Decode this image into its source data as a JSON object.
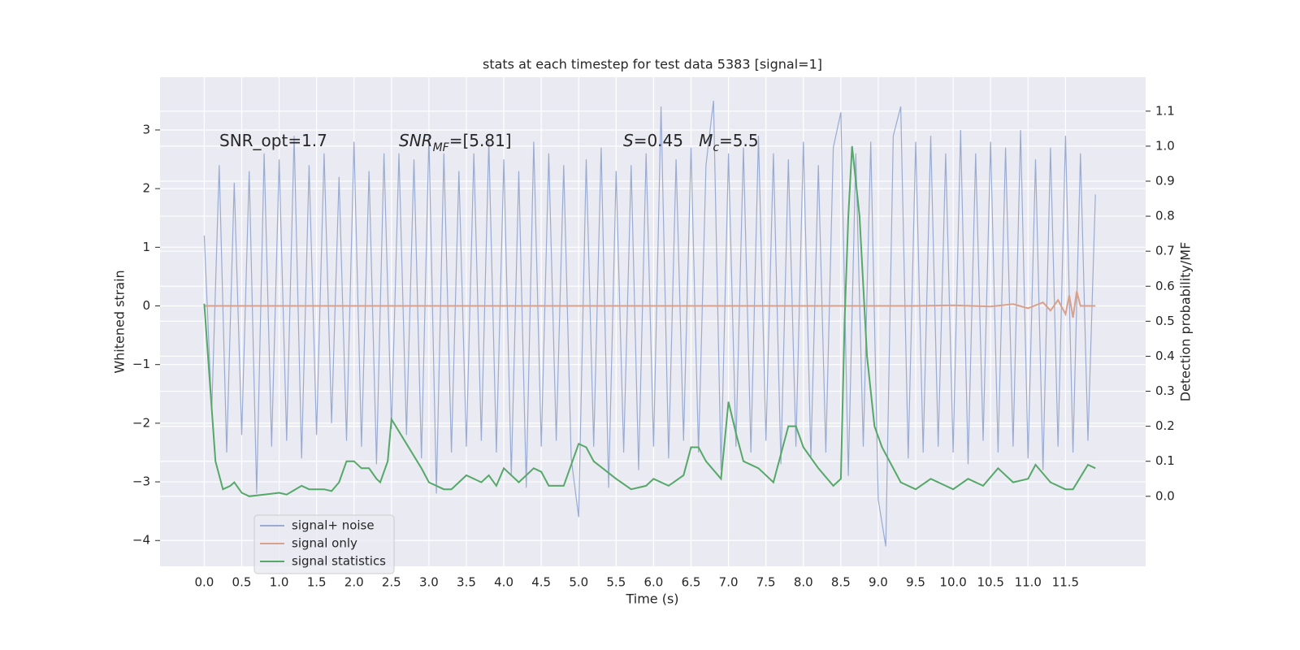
{
  "chart_data": {
    "type": "line",
    "title": "stats at each timestep for test data 5383 [signal=1]",
    "xlabel": "Time (s)",
    "ylabel": "Whitened strain",
    "y2label": "Detection probability/MF",
    "annotations": [
      [
        {
          "text": "SNR_opt=1.7"
        }
      ],
      [
        {
          "text": "SNR",
          "italic": true
        },
        {
          "text": "MF",
          "italic": true,
          "sub": true
        },
        {
          "text": "=[5.81]"
        }
      ],
      [
        {
          "text": "S",
          "italic": true
        },
        {
          "text": "=0.45   "
        },
        {
          "text": "M",
          "italic": true
        },
        {
          "text": "c",
          "italic": true,
          "sub": true
        },
        {
          "text": "=5.5"
        }
      ]
    ],
    "xlim": [
      -0.59,
      12.57
    ],
    "ylim": [
      -4.44,
      3.9
    ],
    "y2lim": [
      -0.2,
      1.197
    ],
    "xticks": [
      {
        "value": 0,
        "label": "0.0"
      },
      0.5,
      {
        "value": 1,
        "label": "1.0"
      },
      1.5,
      {
        "value": 2,
        "label": "2.0"
      },
      2.5,
      {
        "value": 3,
        "label": "3.0"
      },
      3.5,
      {
        "value": 4,
        "label": "4.0"
      },
      4.5,
      {
        "value": 5,
        "label": "5.0"
      },
      5.5,
      {
        "value": 6,
        "label": "6.0"
      },
      6.5,
      {
        "value": 7,
        "label": "7.0"
      },
      7.5,
      {
        "value": 8,
        "label": "8.0"
      },
      8.5,
      {
        "value": 9,
        "label": "9.0"
      },
      9.5,
      {
        "value": 10,
        "label": "10.0"
      },
      10.5,
      {
        "value": 11,
        "label": "11.0"
      },
      11.5
    ],
    "yticks": [
      {
        "value": -4,
        "label": "−4"
      },
      {
        "value": -3,
        "label": "−3"
      },
      {
        "value": -2,
        "label": "−2"
      },
      {
        "value": -1,
        "label": "−1"
      },
      0,
      1,
      2,
      3
    ],
    "y2ticks": [
      {
        "value": 0,
        "label": "0.0"
      },
      0.1,
      0.2,
      0.3,
      0.4,
      0.5,
      0.6,
      0.7,
      0.8,
      0.9,
      {
        "value": 1,
        "label": "1.0"
      },
      1.1
    ],
    "grid": true,
    "legend": "lower left",
    "series": [
      {
        "name": "signal+ noise",
        "color": "#9aabd1",
        "x": [
          0,
          0.1,
          0.2,
          0.3,
          0.4,
          0.5,
          0.6,
          0.7,
          0.8,
          0.9,
          1,
          1.1,
          1.2,
          1.3,
          1.4,
          1.5,
          1.6,
          1.7,
          1.8,
          1.9,
          2,
          2.1,
          2.2,
          2.3,
          2.4,
          2.5,
          2.6,
          2.7,
          2.8,
          2.9,
          3,
          3.1,
          3.2,
          3.3,
          3.4,
          3.5,
          3.6,
          3.7,
          3.8,
          3.9,
          4,
          4.1,
          4.2,
          4.3,
          4.4,
          4.5,
          4.6,
          4.7,
          4.8,
          4.9,
          5,
          5.1,
          5.2,
          5.3,
          5.4,
          5.5,
          5.6,
          5.7,
          5.8,
          5.9,
          6,
          6.1,
          6.2,
          6.3,
          6.4,
          6.5,
          6.6,
          6.7,
          6.8,
          6.9,
          7,
          7.1,
          7.2,
          7.3,
          7.4,
          7.5,
          7.6,
          7.7,
          7.8,
          7.9,
          8,
          8.1,
          8.2,
          8.3,
          8.4,
          8.5,
          8.6,
          8.7,
          8.8,
          8.9,
          9,
          9.1,
          9.2,
          9.3,
          9.4,
          9.5,
          9.6,
          9.7,
          9.8,
          9.9,
          10,
          10.1,
          10.2,
          10.3,
          10.4,
          10.5,
          10.6,
          10.7,
          10.8,
          10.9,
          11,
          11.1,
          11.2,
          11.3,
          11.4,
          11.5,
          11.6,
          11.7,
          11.8,
          11.9
        ],
        "values": [
          1.2,
          -1.8,
          2.4,
          -2.5,
          2.1,
          -2.2,
          2.3,
          -3.2,
          2.6,
          -2.4,
          2.5,
          -2.3,
          2.9,
          -2.6,
          2.4,
          -2.2,
          2.6,
          -2.0,
          2.2,
          -2.3,
          2.8,
          -2.4,
          2.3,
          -2.7,
          2.6,
          -2.1,
          2.6,
          -2.2,
          2.5,
          -2.6,
          2.9,
          -3.2,
          2.6,
          -2.5,
          2.3,
          -2.4,
          2.6,
          -2.3,
          2.8,
          -2.5,
          2.5,
          -2.9,
          2.3,
          -3.1,
          2.8,
          -2.4,
          2.6,
          -2.3,
          2.4,
          -2.6,
          -3.6,
          2.5,
          -2.4,
          2.7,
          -3.1,
          2.3,
          -2.5,
          2.4,
          -2.8,
          2.6,
          -2.4,
          3.4,
          -2.6,
          2.5,
          -2.3,
          2.7,
          -2.5,
          2.4,
          3.5,
          -2.8,
          2.6,
          -2.4,
          2.7,
          -2.5,
          2.9,
          -2.3,
          2.6,
          -2.7,
          2.5,
          -2.4,
          2.8,
          -2.6,
          2.4,
          -2.5,
          2.7,
          3.3,
          -2.9,
          2.6,
          -2.4,
          2.8,
          -3.3,
          -4.1,
          2.9,
          3.4,
          -2.6,
          2.8,
          -2.5,
          2.9,
          -2.4,
          2.6,
          -2.5,
          3.0,
          -2.7,
          2.6,
          -2.3,
          2.8,
          -2.5,
          2.7,
          -2.4,
          3.0,
          -2.6,
          2.5,
          -2.8,
          2.7,
          -2.4,
          2.9,
          -2.5,
          2.6,
          -2.3,
          1.9
        ]
      },
      {
        "name": "signal only",
        "color": "#d9a18c",
        "x": [
          0,
          9.5,
          10,
          10.5,
          10.8,
          11,
          11.2,
          11.3,
          11.4,
          11.5,
          11.55,
          11.6,
          11.65,
          11.7,
          11.9
        ],
        "values": [
          0,
          0,
          0.01,
          -0.01,
          0.03,
          -0.04,
          0.06,
          -0.08,
          0.1,
          -0.14,
          0.18,
          -0.2,
          0.25,
          0,
          0
        ]
      },
      {
        "name": "signal statistics",
        "color": "#55a868",
        "axis": "y2",
        "x": [
          0,
          0.05,
          0.1,
          0.15,
          0.2,
          0.25,
          0.35,
          0.4,
          0.5,
          0.6,
          0.8,
          1,
          1.1,
          1.3,
          1.4,
          1.6,
          1.7,
          1.8,
          1.9,
          2,
          2.1,
          2.2,
          2.3,
          2.35,
          2.45,
          2.5,
          2.7,
          2.9,
          3,
          3.2,
          3.3,
          3.5,
          3.7,
          3.8,
          3.9,
          4,
          4.2,
          4.4,
          4.5,
          4.6,
          4.8,
          5,
          5.1,
          5.2,
          5.5,
          5.7,
          5.9,
          6,
          6.2,
          6.4,
          6.5,
          6.6,
          6.7,
          6.9,
          7,
          7.1,
          7.2,
          7.4,
          7.6,
          7.8,
          7.9,
          8,
          8.2,
          8.4,
          8.5,
          8.55,
          8.6,
          8.65,
          8.75,
          8.85,
          8.95,
          9.05,
          9.15,
          9.3,
          9.5,
          9.7,
          9.9,
          10,
          10.2,
          10.4,
          10.6,
          10.8,
          11,
          11.1,
          11.3,
          11.5,
          11.6,
          11.8,
          11.9
        ],
        "values": [
          0.55,
          0.4,
          0.25,
          0.1,
          0.06,
          0.02,
          0.03,
          0.04,
          0.01,
          0,
          0.005,
          0.01,
          0.005,
          0.03,
          0.02,
          0.02,
          0.015,
          0.04,
          0.1,
          0.1,
          0.08,
          0.08,
          0.05,
          0.04,
          0.1,
          0.22,
          0.15,
          0.08,
          0.04,
          0.02,
          0.02,
          0.06,
          0.04,
          0.06,
          0.03,
          0.08,
          0.04,
          0.08,
          0.07,
          0.03,
          0.03,
          0.15,
          0.14,
          0.1,
          0.05,
          0.02,
          0.03,
          0.05,
          0.03,
          0.06,
          0.14,
          0.14,
          0.1,
          0.05,
          0.27,
          0.18,
          0.1,
          0.08,
          0.04,
          0.2,
          0.2,
          0.14,
          0.08,
          0.03,
          0.05,
          0.5,
          0.8,
          1.0,
          0.8,
          0.4,
          0.2,
          0.14,
          0.1,
          0.04,
          0.02,
          0.05,
          0.03,
          0.02,
          0.05,
          0.03,
          0.08,
          0.04,
          0.05,
          0.09,
          0.04,
          0.02,
          0.02,
          0.09,
          0.08
        ]
      }
    ]
  }
}
